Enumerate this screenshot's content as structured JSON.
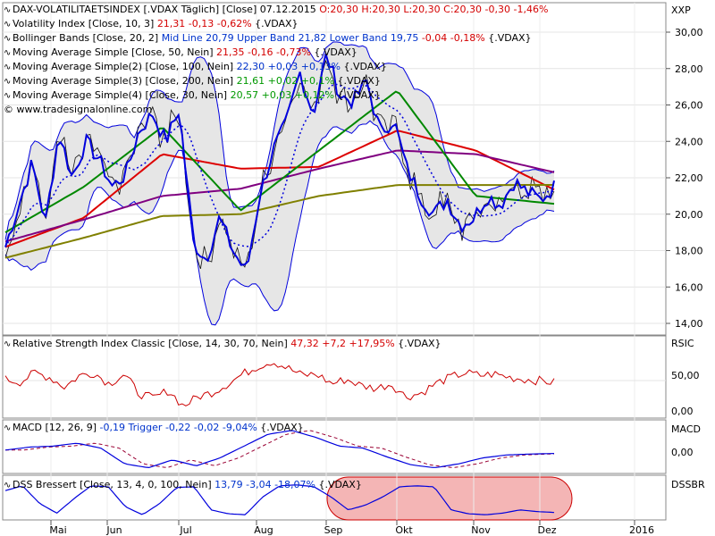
{
  "main": {
    "title_prefix": "DAX-VOLATILITAETSINDEX [.VDAX  Täglich]  [Close]  07.12.2015",
    "ohlc": "O:20,30  H:20,30  L:20,30  C:20,30  -0,30  -1,46%",
    "indicators": [
      {
        "name": "Volatility Index [Close, 10, 3]",
        "vals": "21,31  -0,13  -0,62%",
        "suffix": "{.VDAX}"
      },
      {
        "name": "Bollinger Bands [Close, 20, 2]",
        "vals": "Mid Line 20,79  Upper Band 21,82  Lower Band 19,75",
        "vals2": "-0,04  -0,18%",
        "suffix": "{.VDAX}"
      },
      {
        "name": "Moving Average Simple [Close, 50, Nein]",
        "vals": "21,35  -0,16  -0,73%",
        "suffix": "{.VDAX}"
      },
      {
        "name": "Moving Average Simple(2) [Close, 100, Nein]",
        "vals": "22,30  +0,03  +0,13%",
        "suffix": "{.VDAX}"
      },
      {
        "name": "Moving Average Simple(3) [Close, 200, Nein]",
        "vals": "21,61  +0,02  +0,1%",
        "suffix": "{.VDAX}"
      },
      {
        "name": "Moving Average Simple(4) [Close, 30, Nein]",
        "vals": "20,57  +0,03  +0,12%",
        "suffix": "{.VDAX}"
      }
    ],
    "watermark": "© www.tradesignalonline.com",
    "axis_label": "XXP",
    "yticks": [
      "30,00",
      "28,00",
      "26,00",
      "24,00",
      "22,00",
      "20,00",
      "18,00",
      "16,00",
      "14,00"
    ]
  },
  "rsi": {
    "name": "Relative Strength Index Classic [Close, 14, 30, 70, Nein]",
    "vals": "47,32  +7,2  +17,95%",
    "suffix": "{.VDAX}",
    "axis_label": "RSIC",
    "yticks": [
      "50,00",
      "0,00"
    ]
  },
  "macd": {
    "name": "MACD [12, 26, 9]",
    "vals": "-0,19  Trigger  -0,22  -0,02  -9,04%",
    "suffix": "{.VDAX}",
    "axis_label": "MACD",
    "yticks": [
      "0,00"
    ]
  },
  "dss": {
    "name": "DSS Bressert [Close, 13, 4, 0, 100, Nein]",
    "vals": "13,79  -3,04  -18,07%",
    "suffix": "{.VDAX}",
    "axis_label": "DSSBR"
  },
  "xaxis": {
    "labels": [
      "Mai",
      "Jun",
      "Jul",
      "Aug",
      "Sep",
      "Okt",
      "Nov",
      "Dez",
      "2016"
    ]
  },
  "colors": {
    "price": "#0000dd",
    "bands": "#0000dd",
    "band_fill": "#e6e6e6",
    "ma50": "#dd0000",
    "ma100": "#800080",
    "ma200": "#808000",
    "ma30": "#008800",
    "rsi": "#cc0000",
    "dss_highlight": "#f4b5b5"
  },
  "chart_data": {
    "type": "line",
    "title": "DAX-VOLATILITAETSINDEX [.VDAX Täglich]",
    "ylim": [
      13.5,
      31
    ],
    "x": [
      "Mai",
      "Jun",
      "Jul",
      "Aug",
      "Sep",
      "Okt",
      "Nov",
      "Dez"
    ],
    "series": [
      {
        "name": "Volatility Index [Close, 10, 3]",
        "values": [
          18.0,
          22.5,
          24.5,
          19.5,
          27.5,
          24.5,
          19.8,
          21.3
        ]
      },
      {
        "name": "Moving Average Simple [Close, 50, Nein]",
        "values": [
          18.2,
          19.8,
          23.3,
          22.5,
          22.6,
          24.6,
          23.5,
          21.35
        ]
      },
      {
        "name": "Moving Average Simple(2) [Close, 100, Nein]",
        "values": [
          18.5,
          19.7,
          21.0,
          21.4,
          22.5,
          23.5,
          23.3,
          22.3
        ]
      },
      {
        "name": "Moving Average Simple(3) [Close, 200, Nein]",
        "values": [
          17.6,
          18.7,
          19.9,
          20.0,
          21.0,
          21.6,
          21.6,
          21.61
        ]
      },
      {
        "name": "Moving Average Simple(4) [Close, 30, Nein]",
        "values": [
          19.0,
          21.5,
          24.8,
          20.2,
          23.5,
          26.8,
          21.0,
          20.57
        ]
      }
    ]
  }
}
